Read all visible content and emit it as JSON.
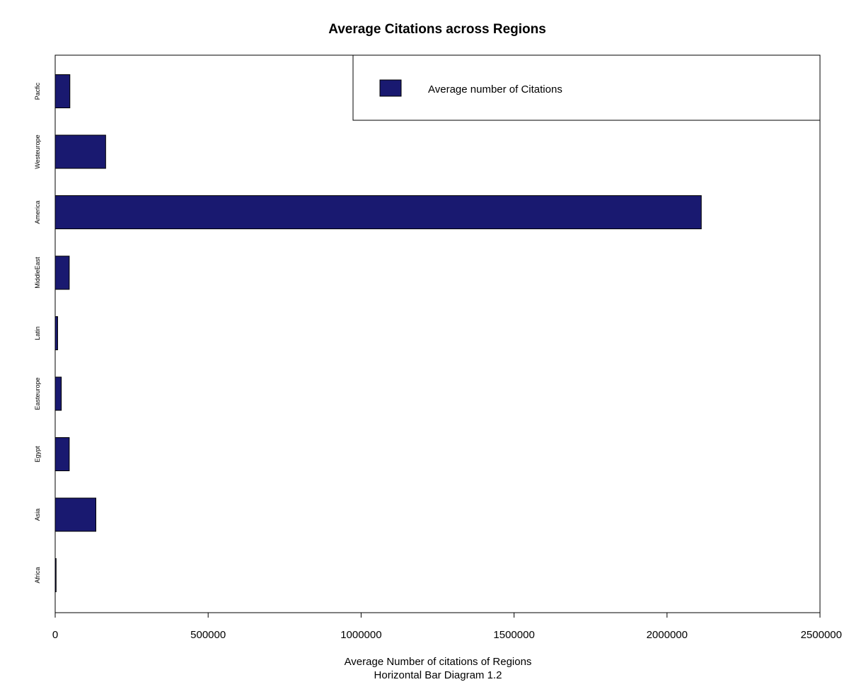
{
  "chart_data": {
    "type": "bar",
    "orientation": "horizontal",
    "title": "Average Citations across Regions",
    "xlabel": "Average Number of citations of Regions",
    "sub": "Horizontal Bar Diagram 1.2",
    "categories": [
      "Africa",
      "Asia",
      "Egypt",
      "Easteurope",
      "Latin",
      "MiddleEast",
      "America",
      "Westeurope",
      "Pacfic"
    ],
    "series": [
      {
        "name": "Average number of Citations",
        "values": [
          3000,
          133000,
          46000,
          20000,
          8000,
          46000,
          2112000,
          165000,
          48000
        ]
      }
    ],
    "xlim": [
      0,
      2500000
    ],
    "xticks": [
      "0",
      "500000",
      "1000000",
      "1500000",
      "2000000",
      "2500000"
    ],
    "bar_color": "#191970",
    "legend_position": "top-right",
    "grid": false
  }
}
